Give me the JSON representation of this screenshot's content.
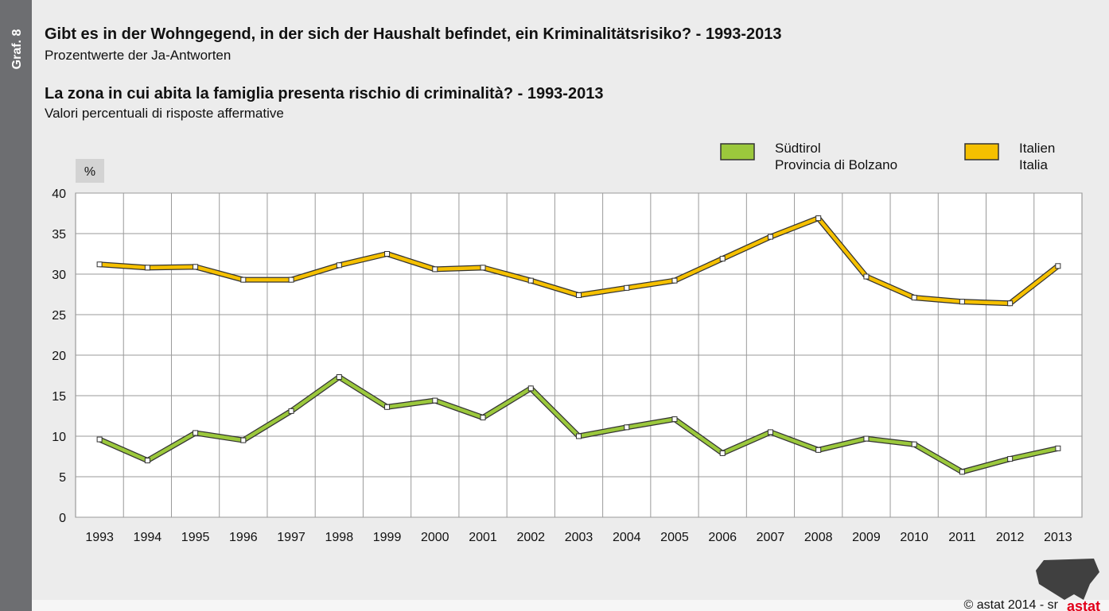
{
  "chart_data": {
    "type": "line",
    "label": "Graf. 8",
    "title": "Gibt es in der Wohngegend, in der sich der Haushalt befindet, ein Kriminalitätsrisiko? - 1993-2013",
    "subtitle": "Prozentwerte der Ja-Antworten",
    "title_it": "La zona in cui abita la famiglia presenta rischio di criminalità? - 1993-2013",
    "subtitle_it": "Valori percentuali di risposte affermative",
    "unit": "%",
    "categories": [
      "1993",
      "1994",
      "1995",
      "1996",
      "1997",
      "1998",
      "1999",
      "2000",
      "2001",
      "2002",
      "2003",
      "2004",
      "2005",
      "2006",
      "2007",
      "2008",
      "2009",
      "2010",
      "2011",
      "2012",
      "2013"
    ],
    "series": [
      {
        "name": "Südtirol\nProvincia di Bolzano",
        "color": "#9bc83c",
        "values": [
          9.6,
          7.0,
          10.4,
          9.5,
          13.1,
          17.3,
          13.6,
          14.4,
          12.3,
          15.9,
          10.0,
          11.1,
          12.1,
          7.9,
          10.5,
          8.3,
          9.7,
          9.0,
          5.6,
          7.2,
          8.5
        ]
      },
      {
        "name": "Italien\nItalia",
        "color": "#f5c000",
        "values": [
          31.2,
          30.8,
          30.9,
          29.3,
          29.3,
          31.1,
          32.5,
          30.6,
          30.8,
          29.2,
          27.4,
          28.3,
          29.2,
          31.9,
          34.6,
          36.9,
          29.7,
          27.1,
          26.6,
          26.4,
          31.0
        ]
      }
    ],
    "ylim": [
      0,
      40
    ],
    "yticks": [
      0,
      5,
      10,
      15,
      20,
      25,
      30,
      35,
      40
    ],
    "grid": true,
    "footer": "© astat 2014 - sr",
    "logo": "astat"
  }
}
